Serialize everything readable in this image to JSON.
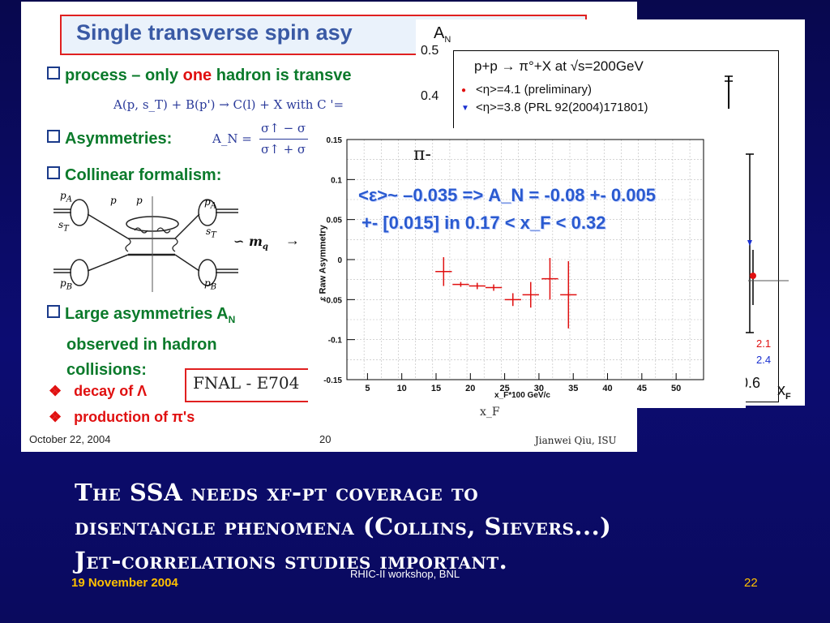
{
  "slide": {
    "caption_lines": [
      "The SSA needs xf-pt coverage to",
      "disentangle phenomena (Collins, Sievers...)",
      "Jet-correlations studies important."
    ],
    "footer": {
      "date": "19 November 2004",
      "center": "RHIC-II workshop, BNL",
      "page": "22"
    }
  },
  "inner_slide": {
    "title": "Single transverse spin asy",
    "bullets": {
      "process_pre": "process – only ",
      "process_one": "one",
      "process_post": " hadron is transve",
      "asymmetries": "Asymmetries:",
      "collinear": "Collinear formalism:",
      "large_1": "Large asymmetries A",
      "large_sub": "N",
      "large_2": "observed in hadron",
      "large_3": "collisions:"
    },
    "formula_process": "A(p, s_T) + B(p') → C(l) + X  with  C '=",
    "formula_an_label": "A_N =",
    "formula_an_num": "σ↑ − σ",
    "formula_an_den": "σ↑ + σ",
    "mq_label": "∽  m",
    "mq_sub": "q",
    "mq_arrow": "→",
    "sub_bullets": [
      "decay of Λ",
      "production of π's"
    ],
    "fnal": "FNAL - E704",
    "footer_left": "October 22, 2004",
    "footer_center": "20",
    "footer_right": "Jianwei Qiu, ISU",
    "diagram_labels": [
      "p",
      "A",
      "s",
      "T",
      "p",
      "p",
      "p",
      "A",
      "s",
      "T",
      "p",
      "B",
      "p",
      "B"
    ]
  },
  "back_plot": {
    "y_axis_label": "A",
    "y_axis_sub": "N",
    "y_ticks": [
      "0.5",
      "0.4"
    ],
    "process": "p+p → π°+X at √s=200GeV",
    "legend_1": "<η>=4.1 (preliminary)",
    "legend_2": "<η>=3.8 (PRL 92(2004)171801)",
    "x_tick": "0.6",
    "x_label": "x",
    "x_sub": "F",
    "side_values": [
      "2.1",
      "2.4"
    ]
  },
  "front_plot": {
    "label": "π-",
    "ylabel": "Raw Asymmetry",
    "ylabel_prefix": "ε",
    "xlabel": "x_F*100 GeV/c",
    "xlabel_below": "x_F",
    "overlay_line1": "<ε>~ –0.035 => A_N = -0.08 +- 0.005",
    "overlay_line2": "+- [0.015]  in 0.17 < x_F < 0.32"
  },
  "chart_data": {
    "type": "scatter",
    "title": "",
    "xlabel": "xF*100 GeV/c",
    "ylabel": "Raw Asymmetry",
    "xlim": [
      2,
      54
    ],
    "ylim": [
      -0.15,
      0.15
    ],
    "x_ticks": [
      5,
      10,
      15,
      20,
      25,
      30,
      35,
      40,
      45,
      50
    ],
    "y_ticks": [
      0.15,
      0.1,
      0.05,
      0,
      -0.05,
      -0.1,
      -0.15
    ],
    "y_tick_labels": [
      "0.15",
      "0.1",
      "0.05",
      "0",
      "-0.05",
      "-0.1",
      "-0.15"
    ],
    "grid": true,
    "color": "#e01010",
    "points": [
      {
        "x": 16.1,
        "y": -0.015,
        "xerr": 1.2,
        "yerr": 0.018
      },
      {
        "x": 18.6,
        "y": -0.031,
        "xerr": 1.2,
        "yerr": 0.003
      },
      {
        "x": 21.0,
        "y": -0.033,
        "xerr": 1.2,
        "yerr": 0.004
      },
      {
        "x": 23.4,
        "y": -0.035,
        "xerr": 1.2,
        "yerr": 0.004
      },
      {
        "x": 26.2,
        "y": -0.05,
        "xerr": 1.2,
        "yerr": 0.008
      },
      {
        "x": 28.8,
        "y": -0.044,
        "xerr": 1.2,
        "yerr": 0.016
      },
      {
        "x": 31.6,
        "y": -0.024,
        "xerr": 1.2,
        "yerr": 0.026
      },
      {
        "x": 34.3,
        "y": -0.044,
        "xerr": 1.2,
        "yerr": 0.042
      }
    ]
  }
}
